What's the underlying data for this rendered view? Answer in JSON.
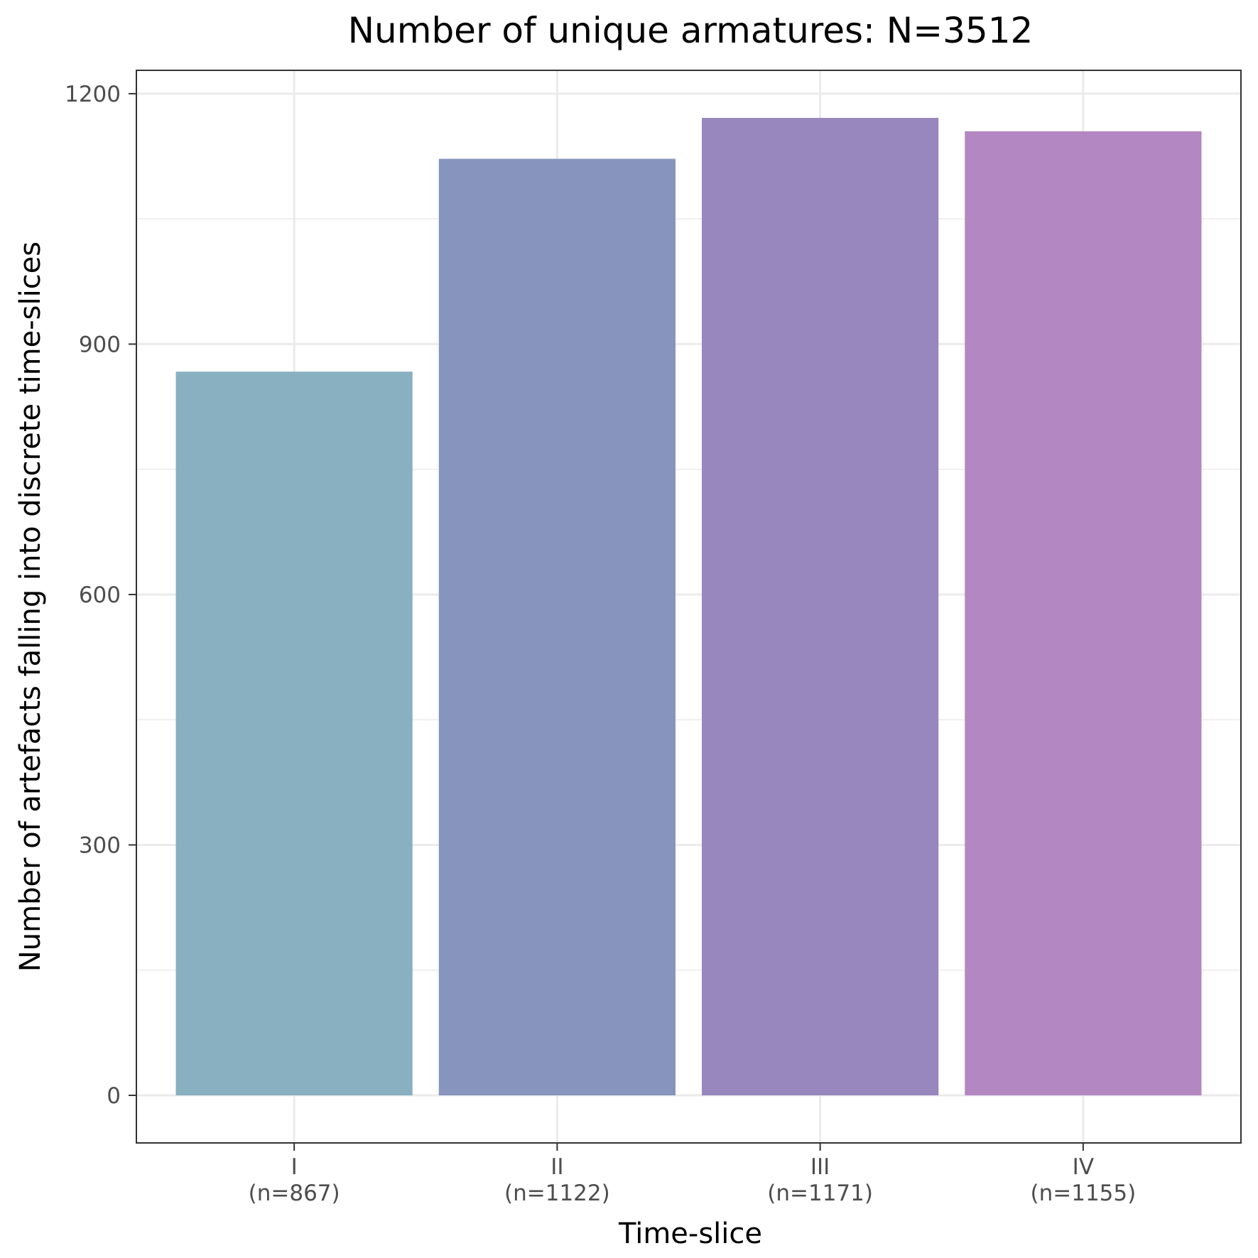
{
  "chart_data": {
    "type": "bar",
    "title": "Number of unique armatures: N=3512",
    "xlabel": "Time-slice",
    "ylabel": "Number of artefacts falling into discrete time-slices",
    "categories": [
      "I",
      "II",
      "III",
      "IV"
    ],
    "category_sublabels": [
      "(n=867)",
      "(n=1122)",
      "(n=1171)",
      "(n=1155)"
    ],
    "values": [
      867,
      1122,
      1171,
      1155
    ],
    "colors": [
      "#88b0c1",
      "#8795be",
      "#9787be",
      "#b387c1"
    ],
    "ylim": [
      -57,
      1228
    ],
    "yticks": [
      0,
      300,
      600,
      900,
      1200
    ],
    "ytick_labels": [
      "0",
      "300",
      "600",
      "900",
      "1200"
    ],
    "y_minor_gridlines": [
      150,
      450,
      750,
      1050
    ],
    "grid": true,
    "legend": "none"
  }
}
